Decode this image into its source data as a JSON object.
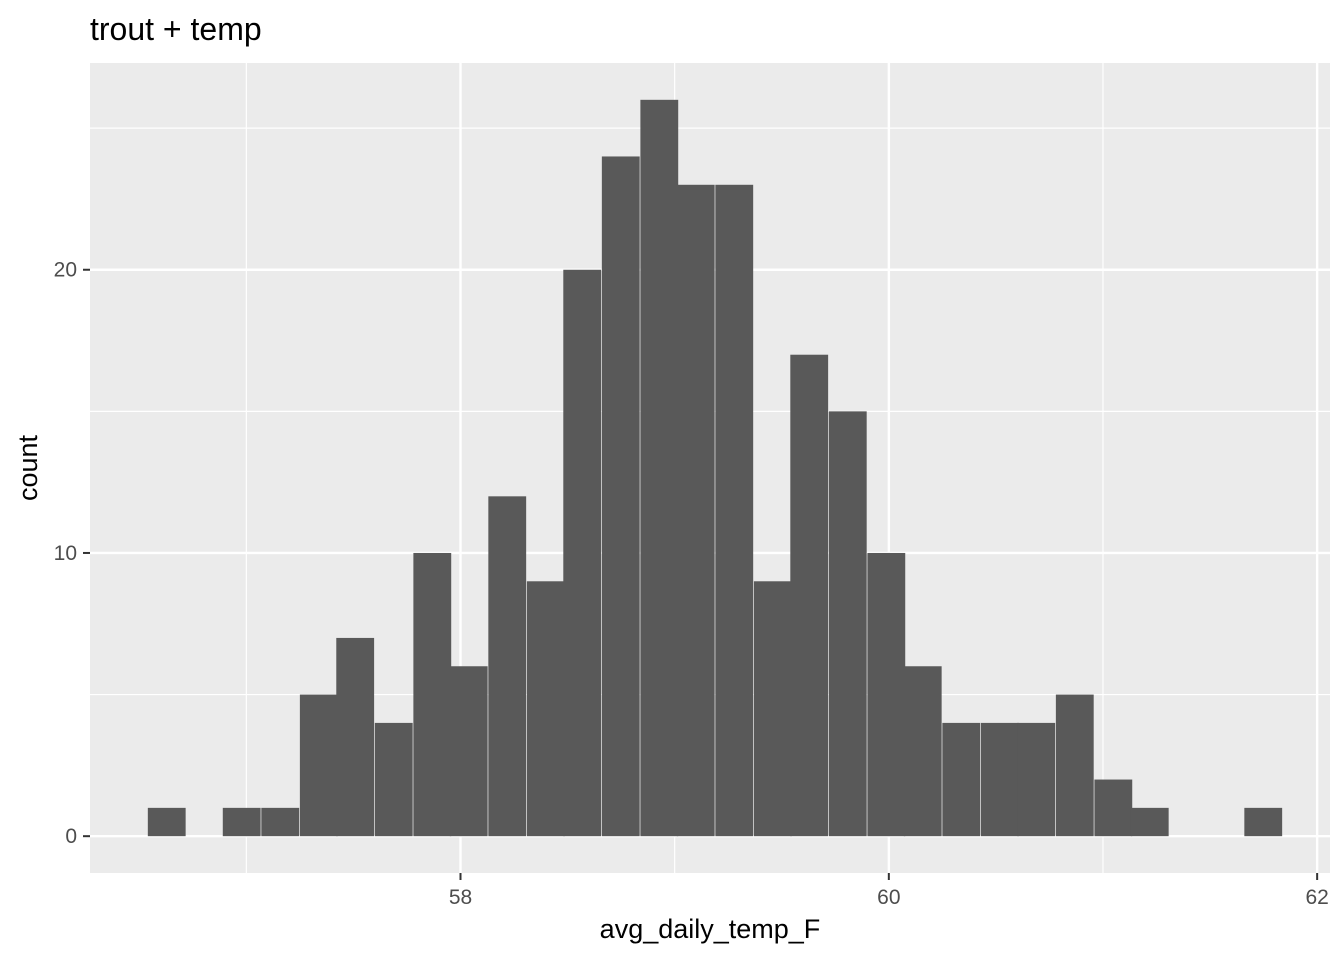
{
  "chart_data": {
    "type": "histogram",
    "title": "trout + temp",
    "xlabel": "avg_daily_temp_F",
    "ylabel": "count",
    "x_ticks": [
      58,
      60,
      62
    ],
    "y_ticks": [
      0,
      10,
      20
    ],
    "xlim": [
      56.27,
      62.06
    ],
    "ylim": [
      -1.3,
      27.3
    ],
    "grid": true,
    "bin_width": 0.1766,
    "bins": [
      {
        "x_start": 56.54,
        "count": 1
      },
      {
        "x_start": 56.72,
        "count": 0
      },
      {
        "x_start": 56.89,
        "count": 1
      },
      {
        "x_start": 57.07,
        "count": 1
      },
      {
        "x_start": 57.25,
        "count": 5
      },
      {
        "x_start": 57.42,
        "count": 7
      },
      {
        "x_start": 57.6,
        "count": 4
      },
      {
        "x_start": 57.78,
        "count": 10
      },
      {
        "x_start": 57.95,
        "count": 6
      },
      {
        "x_start": 58.13,
        "count": 12
      },
      {
        "x_start": 58.31,
        "count": 9
      },
      {
        "x_start": 58.48,
        "count": 20
      },
      {
        "x_start": 58.66,
        "count": 24
      },
      {
        "x_start": 58.84,
        "count": 26
      },
      {
        "x_start": 59.01,
        "count": 23
      },
      {
        "x_start": 59.19,
        "count": 23
      },
      {
        "x_start": 59.37,
        "count": 9
      },
      {
        "x_start": 59.54,
        "count": 17
      },
      {
        "x_start": 59.72,
        "count": 15
      },
      {
        "x_start": 59.9,
        "count": 10
      },
      {
        "x_start": 60.07,
        "count": 6
      },
      {
        "x_start": 60.25,
        "count": 4
      },
      {
        "x_start": 60.43,
        "count": 4
      },
      {
        "x_start": 60.6,
        "count": 4
      },
      {
        "x_start": 60.78,
        "count": 5
      },
      {
        "x_start": 60.96,
        "count": 2
      },
      {
        "x_start": 61.13,
        "count": 1
      },
      {
        "x_start": 61.31,
        "count": 0
      },
      {
        "x_start": 61.49,
        "count": 0
      },
      {
        "x_start": 61.66,
        "count": 1
      }
    ],
    "colors": {
      "panel_background": "#ebebeb",
      "grid_line": "#ffffff",
      "bar_fill": "#595959",
      "tick_text": "#4d4d4d",
      "tick_mark": "#333333"
    }
  }
}
